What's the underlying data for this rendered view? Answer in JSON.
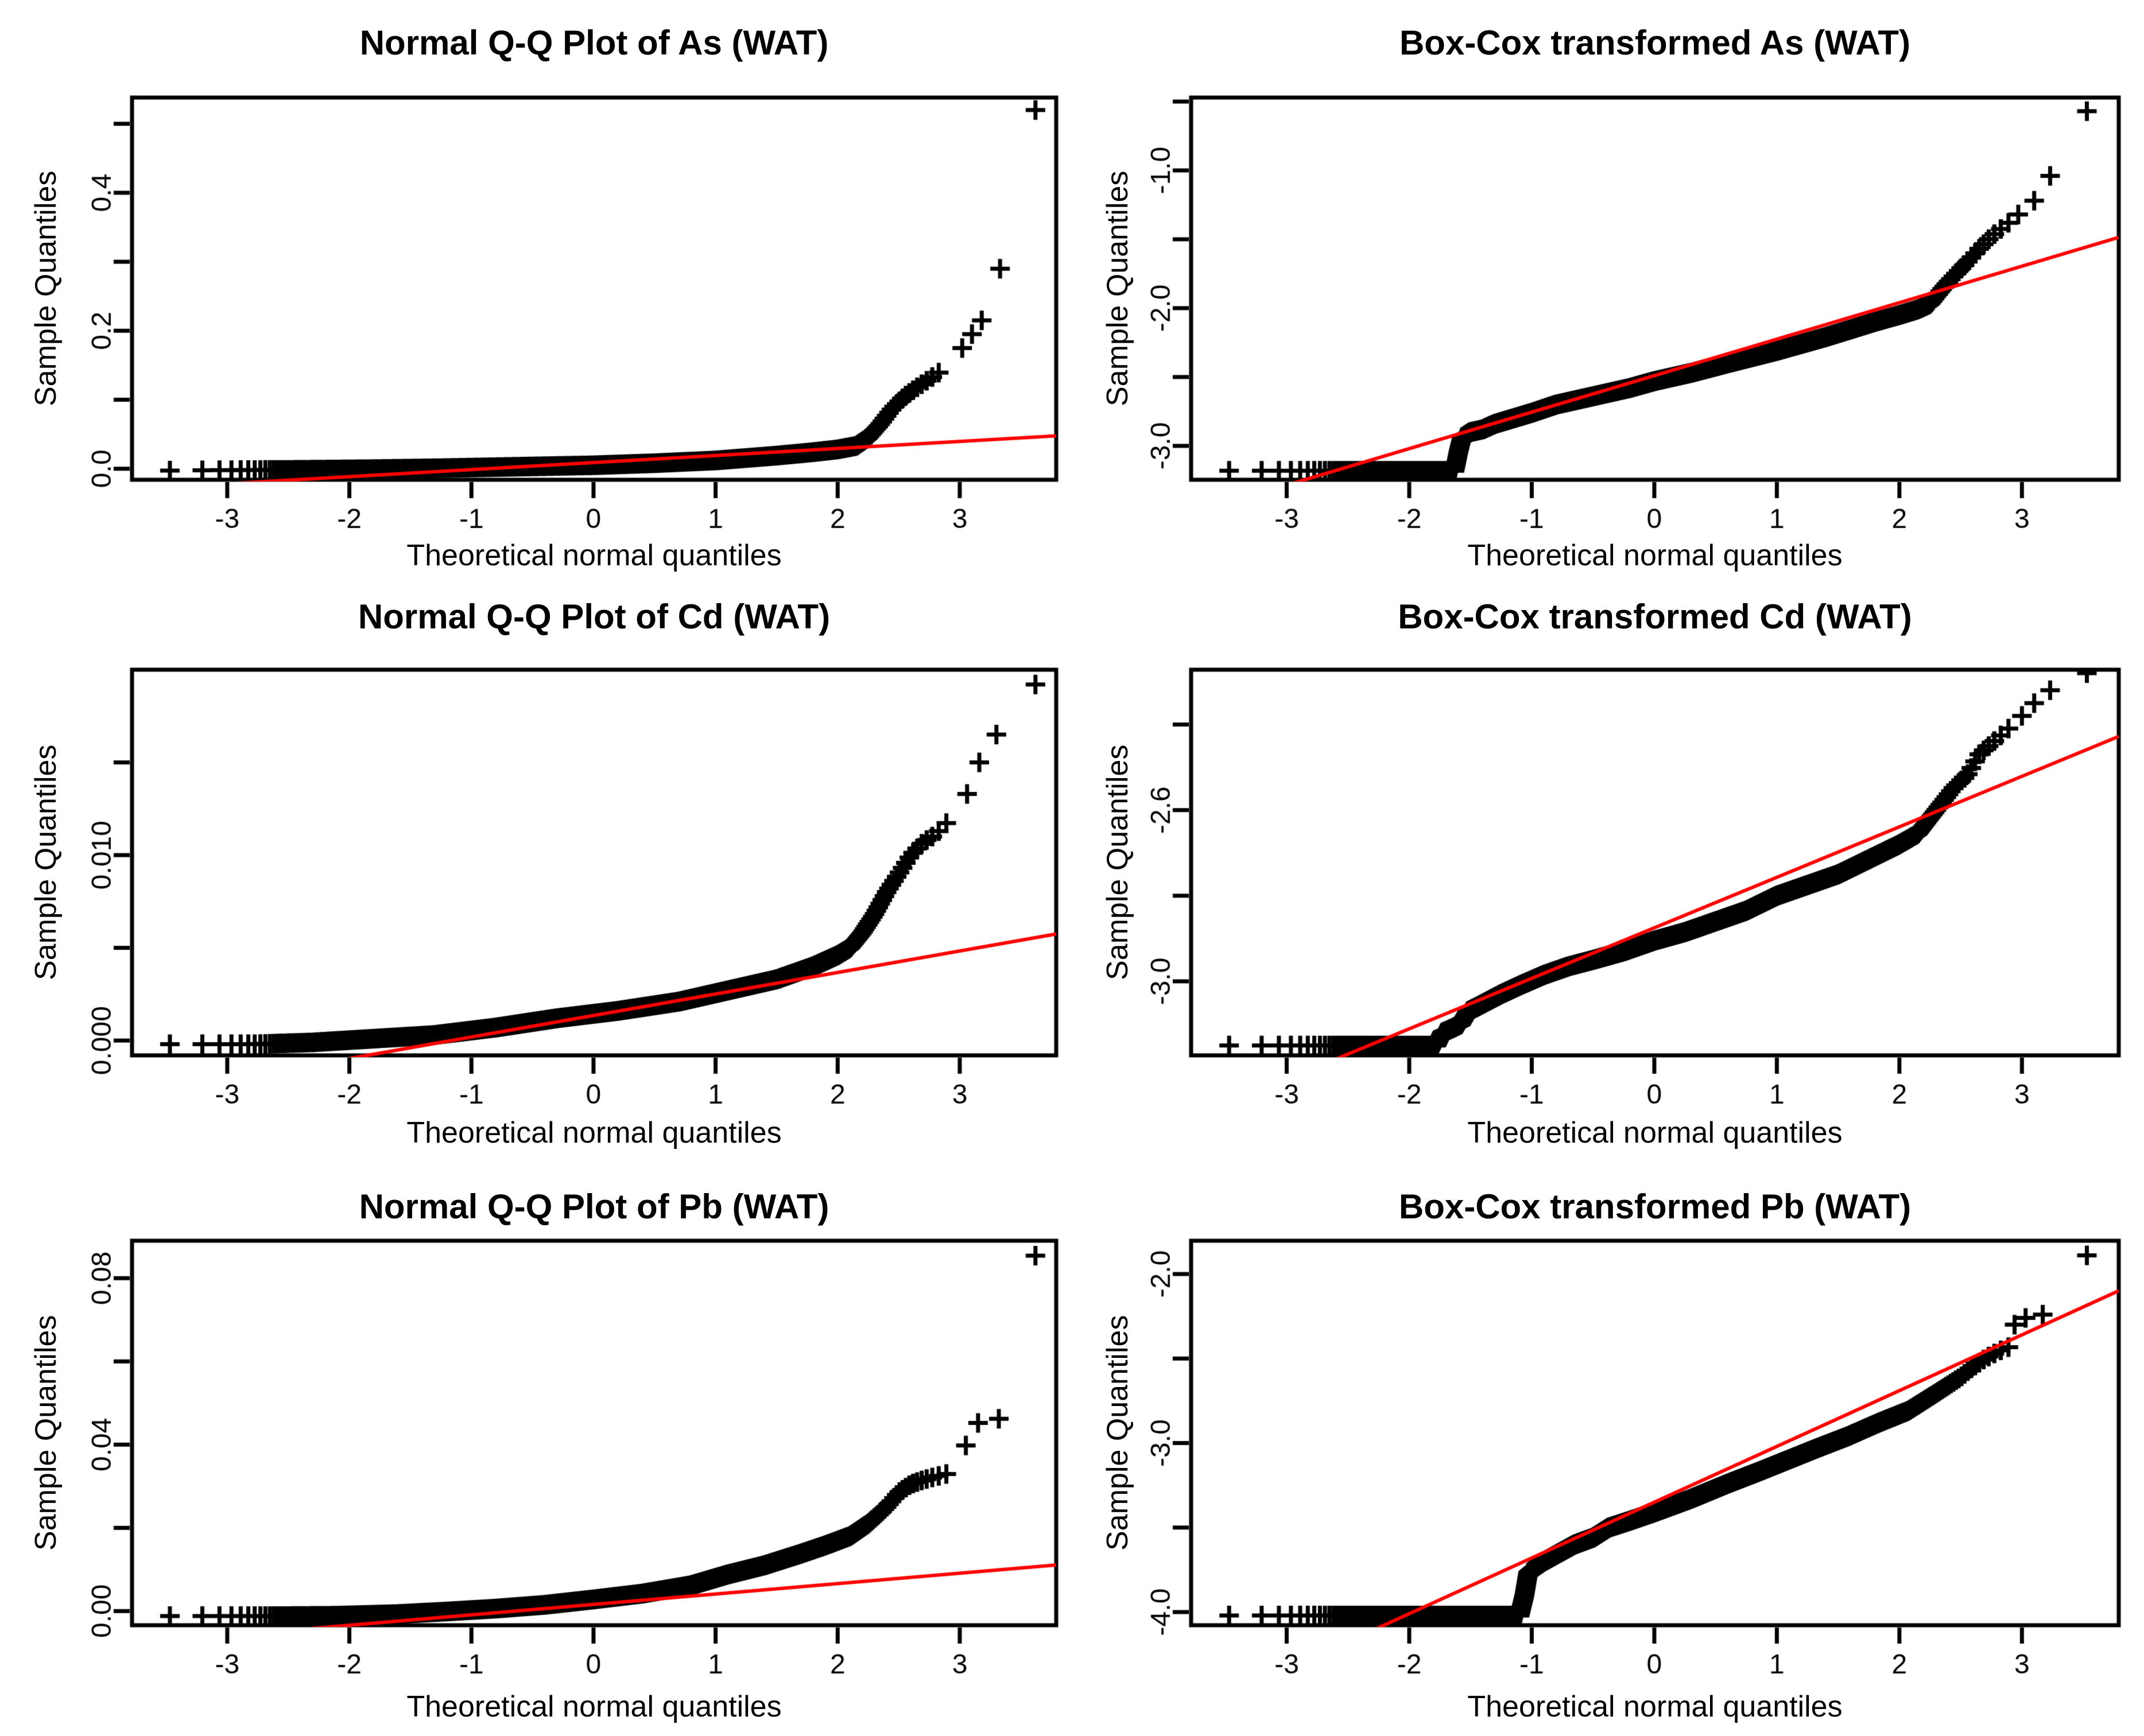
{
  "figure": {
    "background": "#ffffff",
    "marker_color": "#000000",
    "ref_line_color": "#ff0000",
    "frame_color": "#000000",
    "x_axis_title": "Theoretical normal quantiles",
    "y_axis_title": "Sample Quantiles"
  },
  "chart_data": [
    {
      "type": "scatter",
      "title": "Normal Q-Q Plot of As (WAT)",
      "xlabel": "Theoretical normal quantiles",
      "ylabel": "Sample Quantiles",
      "marker": "+",
      "point_color": "#000000",
      "line_color": "#ff0000",
      "grid": false,
      "xlim": [
        -3.78,
        3.79
      ],
      "ylim": [
        -0.016,
        0.538
      ],
      "x_ticks": [
        {
          "v": -3,
          "label": "-3"
        },
        {
          "v": -2,
          "label": "-2"
        },
        {
          "v": -1,
          "label": "-1"
        },
        {
          "v": 0,
          "label": "0"
        },
        {
          "v": 1,
          "label": "1"
        },
        {
          "v": 2,
          "label": "2"
        },
        {
          "v": 3,
          "label": "3"
        }
      ],
      "y_ticks": [
        {
          "v": 0.0,
          "label": "0.0"
        },
        {
          "v": 0.1,
          "label": ""
        },
        {
          "v": 0.2,
          "label": "0.2"
        },
        {
          "v": 0.3,
          "label": ""
        },
        {
          "v": 0.4,
          "label": "0.4"
        },
        {
          "v": 0.5,
          "label": ""
        }
      ],
      "n_points": 2400,
      "top_x": [
        3.62,
        3.33,
        3.18,
        3.1,
        3.02
      ],
      "curve": [
        [
          -3.78,
          -0.003
        ],
        [
          -3.0,
          -0.002
        ],
        [
          -2.4,
          -0.0015
        ],
        [
          -1.8,
          -0.0005
        ],
        [
          -1.2,
          0.001
        ],
        [
          -0.6,
          0.003
        ],
        [
          0,
          0.005
        ],
        [
          0.5,
          0.008
        ],
        [
          1.0,
          0.012
        ],
        [
          1.5,
          0.019
        ],
        [
          1.8,
          0.024
        ],
        [
          2.0,
          0.028
        ],
        [
          2.15,
          0.033
        ],
        [
          2.25,
          0.045
        ],
        [
          2.35,
          0.065
        ],
        [
          2.45,
          0.088
        ],
        [
          2.55,
          0.105
        ],
        [
          2.65,
          0.118
        ],
        [
          2.75,
          0.13
        ],
        [
          2.85,
          0.142
        ],
        [
          2.95,
          0.155
        ],
        [
          3.02,
          0.175
        ],
        [
          3.1,
          0.195
        ],
        [
          3.18,
          0.215
        ],
        [
          3.33,
          0.29
        ],
        [
          3.45,
          0.295
        ],
        [
          3.62,
          0.52
        ]
      ],
      "ref_line": {
        "slope": 0.0102,
        "intercept": 0.0089
      }
    },
    {
      "type": "scatter",
      "title": "Box-Cox transformed As (WAT)",
      "xlabel": "Theoretical normal quantiles",
      "ylabel": "Sample Quantiles",
      "marker": "+",
      "point_color": "#000000",
      "line_color": "#ff0000",
      "grid": false,
      "xlim": [
        -3.78,
        3.79
      ],
      "ylim": [
        -3.246,
        -0.471
      ],
      "x_ticks": [
        {
          "v": -3,
          "label": "-3"
        },
        {
          "v": -2,
          "label": "-2"
        },
        {
          "v": -1,
          "label": "-1"
        },
        {
          "v": 0,
          "label": "0"
        },
        {
          "v": 1,
          "label": "1"
        },
        {
          "v": 2,
          "label": "2"
        },
        {
          "v": 3,
          "label": "3"
        }
      ],
      "y_ticks": [
        {
          "v": -3.0,
          "label": "-3.0"
        },
        {
          "v": -2.5,
          "label": ""
        },
        {
          "v": -2.0,
          "label": "-2.0"
        },
        {
          "v": -1.5,
          "label": ""
        },
        {
          "v": -1.0,
          "label": "-1.0"
        },
        {
          "v": -0.5,
          "label": ""
        }
      ],
      "n_points": 2400,
      "top_x": [
        3.53,
        3.23,
        3.1,
        2.97
      ],
      "curve": [
        [
          -3.78,
          -3.18
        ],
        [
          -1.63,
          -3.18
        ],
        [
          -1.6,
          -3.05
        ],
        [
          -1.57,
          -2.94
        ],
        [
          -1.5,
          -2.9
        ],
        [
          -1.4,
          -2.88
        ],
        [
          -1.3,
          -2.84
        ],
        [
          -1.15,
          -2.8
        ],
        [
          -1.0,
          -2.76
        ],
        [
          -0.8,
          -2.7
        ],
        [
          -0.5,
          -2.64
        ],
        [
          -0.2,
          -2.58
        ],
        [
          0,
          -2.53
        ],
        [
          0.3,
          -2.47
        ],
        [
          0.6,
          -2.4
        ],
        [
          1.0,
          -2.31
        ],
        [
          1.4,
          -2.21
        ],
        [
          1.8,
          -2.1
        ],
        [
          2.0,
          -2.05
        ],
        [
          2.15,
          -2.01
        ],
        [
          2.25,
          -1.97
        ],
        [
          2.35,
          -1.86
        ],
        [
          2.45,
          -1.76
        ],
        [
          2.55,
          -1.67
        ],
        [
          2.65,
          -1.57
        ],
        [
          2.75,
          -1.48
        ],
        [
          2.85,
          -1.41
        ],
        [
          2.97,
          -1.32
        ],
        [
          3.1,
          -1.22
        ],
        [
          3.23,
          -1.04
        ],
        [
          3.4,
          -1.0
        ],
        [
          3.53,
          -0.57
        ]
      ],
      "ref_line": {
        "slope": 0.265,
        "intercept": -2.49
      }
    },
    {
      "type": "scatter",
      "title": "Normal Q-Q Plot of Cd (WAT)",
      "xlabel": "Theoretical normal quantiles",
      "ylabel": "Sample Quantiles",
      "marker": "+",
      "point_color": "#000000",
      "line_color": "#ff0000",
      "grid": false,
      "xlim": [
        -3.78,
        3.79
      ],
      "ylim": [
        -0.0008,
        0.02
      ],
      "x_ticks": [
        {
          "v": -3,
          "label": "-3"
        },
        {
          "v": -2,
          "label": "-2"
        },
        {
          "v": -1,
          "label": "-1"
        },
        {
          "v": 0,
          "label": "0"
        },
        {
          "v": 1,
          "label": "1"
        },
        {
          "v": 2,
          "label": "2"
        },
        {
          "v": 3,
          "label": "3"
        }
      ],
      "y_ticks": [
        {
          "v": 0.0,
          "label": "0.000"
        },
        {
          "v": 0.005,
          "label": ""
        },
        {
          "v": 0.01,
          "label": "0.010"
        },
        {
          "v": 0.015,
          "label": ""
        }
      ],
      "n_points": 2400,
      "top_x": [
        3.62,
        3.3,
        3.16,
        3.06
      ],
      "curve": [
        [
          -3.78,
          -0.0002
        ],
        [
          -2.8,
          -0.0002
        ],
        [
          -2.3,
          -0.0001
        ],
        [
          -1.8,
          0.0001
        ],
        [
          -1.3,
          0.0003
        ],
        [
          -0.8,
          0.0007
        ],
        [
          -0.3,
          0.0012
        ],
        [
          0.2,
          0.0016
        ],
        [
          0.7,
          0.0021
        ],
        [
          1.1,
          0.0027
        ],
        [
          1.5,
          0.0033
        ],
        [
          1.8,
          0.004
        ],
        [
          2.0,
          0.0046
        ],
        [
          2.1,
          0.005
        ],
        [
          2.2,
          0.0058
        ],
        [
          2.3,
          0.0068
        ],
        [
          2.4,
          0.008
        ],
        [
          2.5,
          0.009
        ],
        [
          2.6,
          0.01
        ],
        [
          2.7,
          0.0107
        ],
        [
          2.8,
          0.0111
        ],
        [
          2.9,
          0.0118
        ],
        [
          3.0,
          0.0128
        ],
        [
          3.06,
          0.0133
        ],
        [
          3.16,
          0.015
        ],
        [
          3.3,
          0.0165
        ],
        [
          3.45,
          0.0168
        ],
        [
          3.62,
          0.0192
        ]
      ],
      "ref_line": {
        "slope": 0.00116,
        "intercept": 0.00135
      }
    },
    {
      "type": "scatter",
      "title": "Box-Cox transformed Cd (WAT)",
      "xlabel": "Theoretical normal quantiles",
      "ylabel": "Sample Quantiles",
      "marker": "+",
      "point_color": "#000000",
      "line_color": "#ff0000",
      "grid": false,
      "xlim": [
        -3.78,
        3.79
      ],
      "ylim": [
        -3.173,
        -2.272
      ],
      "x_ticks": [
        {
          "v": -3,
          "label": "-3"
        },
        {
          "v": -2,
          "label": "-2"
        },
        {
          "v": -1,
          "label": "-1"
        },
        {
          "v": 0,
          "label": "0"
        },
        {
          "v": 1,
          "label": "1"
        },
        {
          "v": 2,
          "label": "2"
        },
        {
          "v": 3,
          "label": "3"
        }
      ],
      "y_ticks": [
        {
          "v": -3.0,
          "label": "-3.0"
        },
        {
          "v": -2.8,
          "label": ""
        },
        {
          "v": -2.6,
          "label": "-2.6"
        },
        {
          "v": -2.4,
          "label": ""
        }
      ],
      "n_points": 2400,
      "top_x": [
        3.53,
        3.23,
        3.1,
        3.0
      ],
      "curve": [
        [
          -3.78,
          -3.15
        ],
        [
          -1.78,
          -3.15
        ],
        [
          -1.73,
          -3.12
        ],
        [
          -1.65,
          -3.11
        ],
        [
          -1.58,
          -3.1
        ],
        [
          -1.52,
          -3.07
        ],
        [
          -1.45,
          -3.06
        ],
        [
          -1.35,
          -3.045
        ],
        [
          -1.25,
          -3.03
        ],
        [
          -1.1,
          -3.01
        ],
        [
          -0.9,
          -2.985
        ],
        [
          -0.7,
          -2.965
        ],
        [
          -0.5,
          -2.95
        ],
        [
          -0.25,
          -2.93
        ],
        [
          0,
          -2.905
        ],
        [
          0.25,
          -2.885
        ],
        [
          0.5,
          -2.86
        ],
        [
          0.75,
          -2.835
        ],
        [
          1.0,
          -2.8
        ],
        [
          1.25,
          -2.775
        ],
        [
          1.5,
          -2.75
        ],
        [
          1.75,
          -2.715
        ],
        [
          2.0,
          -2.68
        ],
        [
          2.15,
          -2.655
        ],
        [
          2.3,
          -2.6
        ],
        [
          2.45,
          -2.545
        ],
        [
          2.55,
          -2.52
        ],
        [
          2.65,
          -2.47
        ],
        [
          2.75,
          -2.445
        ],
        [
          2.85,
          -2.42
        ],
        [
          3.0,
          -2.38
        ],
        [
          3.1,
          -2.35
        ],
        [
          3.23,
          -2.32
        ],
        [
          3.4,
          -2.31
        ],
        [
          3.53,
          -2.28
        ]
      ],
      "ref_line": {
        "slope": 0.118,
        "intercept": -2.875
      }
    },
    {
      "type": "scatter",
      "title": "Normal Q-Q Plot of Pb (WAT)",
      "xlabel": "Theoretical normal quantiles",
      "ylabel": "Sample Quantiles",
      "marker": "+",
      "point_color": "#000000",
      "line_color": "#ff0000",
      "grid": false,
      "xlim": [
        -3.78,
        3.79
      ],
      "ylim": [
        -0.0034,
        0.089
      ],
      "x_ticks": [
        {
          "v": -3,
          "label": "-3"
        },
        {
          "v": -2,
          "label": "-2"
        },
        {
          "v": -1,
          "label": "-1"
        },
        {
          "v": 0,
          "label": "0"
        },
        {
          "v": 1,
          "label": "1"
        },
        {
          "v": 2,
          "label": "2"
        },
        {
          "v": 3,
          "label": "3"
        }
      ],
      "y_ticks": [
        {
          "v": 0.0,
          "label": "0.00"
        },
        {
          "v": 0.02,
          "label": ""
        },
        {
          "v": 0.04,
          "label": "0.04"
        },
        {
          "v": 0.06,
          "label": ""
        },
        {
          "v": 0.08,
          "label": "0.08"
        }
      ],
      "n_points": 2400,
      "top_x": [
        3.62,
        3.32,
        3.15,
        3.05
      ],
      "curve": [
        [
          -3.78,
          -0.0012
        ],
        [
          -2.6,
          -0.0012
        ],
        [
          -2.1,
          -0.0011
        ],
        [
          -1.6,
          -0.0007
        ],
        [
          -1.2,
          -0.0001
        ],
        [
          -0.8,
          0.0006
        ],
        [
          -0.4,
          0.0015
        ],
        [
          0,
          0.0028
        ],
        [
          0.4,
          0.0042
        ],
        [
          0.8,
          0.0062
        ],
        [
          1.1,
          0.0088
        ],
        [
          1.4,
          0.011
        ],
        [
          1.7,
          0.0138
        ],
        [
          1.9,
          0.0158
        ],
        [
          2.1,
          0.018
        ],
        [
          2.25,
          0.021
        ],
        [
          2.4,
          0.025
        ],
        [
          2.5,
          0.0285
        ],
        [
          2.6,
          0.0305
        ],
        [
          2.7,
          0.0315
        ],
        [
          2.8,
          0.0323
        ],
        [
          2.9,
          0.033
        ],
        [
          2.98,
          0.0372
        ],
        [
          3.05,
          0.0398
        ],
        [
          3.15,
          0.0452
        ],
        [
          3.32,
          0.0462
        ],
        [
          3.45,
          0.0465
        ],
        [
          3.62,
          0.0854
        ]
      ],
      "ref_line": {
        "slope": 0.0025,
        "intercept": 0.0016
      }
    },
    {
      "type": "scatter",
      "title": "Box-Cox transformed Pb (WAT)",
      "xlabel": "Theoretical normal quantiles",
      "ylabel": "Sample Quantiles",
      "marker": "+",
      "point_color": "#000000",
      "line_color": "#ff0000",
      "grid": false,
      "xlim": [
        -3.78,
        3.79
      ],
      "ylim": [
        -4.078,
        -1.803
      ],
      "x_ticks": [
        {
          "v": -3,
          "label": "-3"
        },
        {
          "v": -2,
          "label": "-2"
        },
        {
          "v": -1,
          "label": "-1"
        },
        {
          "v": 0,
          "label": "0"
        },
        {
          "v": 1,
          "label": "1"
        },
        {
          "v": 2,
          "label": "2"
        },
        {
          "v": 3,
          "label": "3"
        }
      ],
      "y_ticks": [
        {
          "v": -4.0,
          "label": "-4.0"
        },
        {
          "v": -3.5,
          "label": ""
        },
        {
          "v": -3.0,
          "label": "-3.0"
        },
        {
          "v": -2.5,
          "label": ""
        },
        {
          "v": -2.0,
          "label": "-2.0"
        }
      ],
      "n_points": 2400,
      "top_x": [
        3.53,
        3.17,
        3.03,
        2.94
      ],
      "curve": [
        [
          -3.78,
          -4.02
        ],
        [
          -1.1,
          -4.02
        ],
        [
          -1.06,
          -3.9
        ],
        [
          -1.03,
          -3.77
        ],
        [
          -0.98,
          -3.74
        ],
        [
          -0.9,
          -3.7
        ],
        [
          -0.8,
          -3.66
        ],
        [
          -0.65,
          -3.6
        ],
        [
          -0.5,
          -3.56
        ],
        [
          -0.37,
          -3.5
        ],
        [
          -0.2,
          -3.46
        ],
        [
          0,
          -3.41
        ],
        [
          0.3,
          -3.33
        ],
        [
          0.6,
          -3.24
        ],
        [
          0.85,
          -3.17
        ],
        [
          1.09,
          -3.1
        ],
        [
          1.33,
          -3.03
        ],
        [
          1.58,
          -2.96
        ],
        [
          1.83,
          -2.88
        ],
        [
          2.07,
          -2.81
        ],
        [
          2.31,
          -2.7
        ],
        [
          2.5,
          -2.61
        ],
        [
          2.6,
          -2.55
        ],
        [
          2.7,
          -2.5
        ],
        [
          2.8,
          -2.46
        ],
        [
          2.9,
          -2.43
        ],
        [
          2.94,
          -2.3
        ],
        [
          3.03,
          -2.26
        ],
        [
          3.17,
          -2.24
        ],
        [
          3.4,
          -2.22
        ],
        [
          3.53,
          -1.89
        ]
      ],
      "ref_line": {
        "slope": 0.33,
        "intercept": -3.35
      }
    }
  ]
}
